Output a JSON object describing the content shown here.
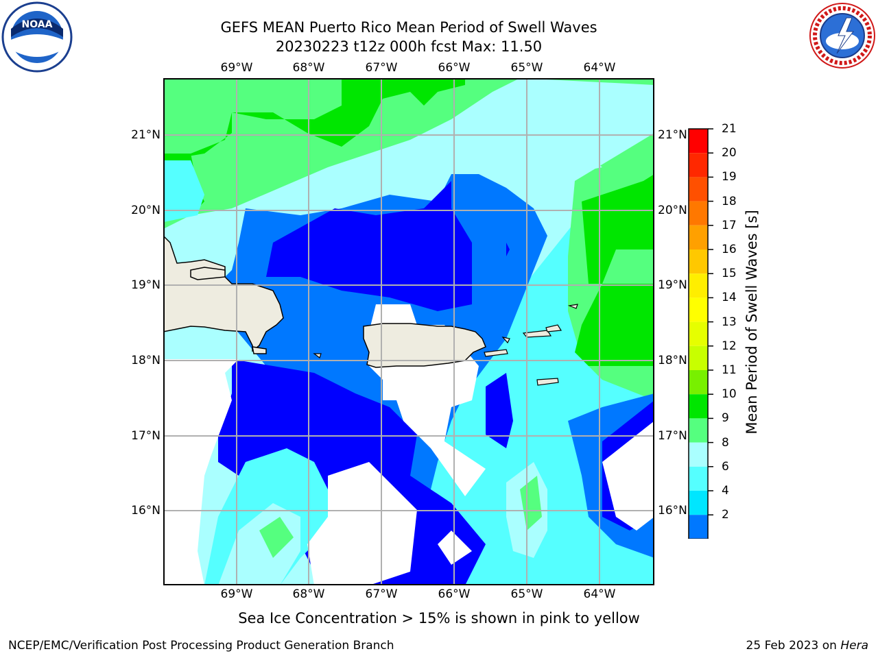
{
  "header": {
    "title_line1": "GEFS MEAN Puerto Rico Mean Period of Swell Waves",
    "title_line2": "20230223 t12z 000h fcst   Max: 11.50"
  },
  "logos": {
    "left": {
      "icon": "noaa-logo",
      "text": "NOAA"
    },
    "right": {
      "icon": "nws-logo",
      "text": "NATIONAL WEATHER SERVICE"
    }
  },
  "map": {
    "lon_labels": [
      "69°W",
      "68°W",
      "67°W",
      "66°W",
      "65°W",
      "64°W"
    ],
    "lat_labels": [
      "21°N",
      "20°N",
      "19°N",
      "18°N",
      "17°N",
      "16°N"
    ],
    "land_color": "#eeece0",
    "grid_color": "#b0b0b0"
  },
  "colorbar": {
    "label": "Mean Period of Swell Waves [s]",
    "ticks": [
      "21",
      "20",
      "19",
      "18",
      "17",
      "16",
      "15",
      "14",
      "13",
      "12",
      "11",
      "10",
      "9",
      "8",
      "6",
      "4",
      "2"
    ],
    "colors": [
      "#ff0000",
      "#ff2800",
      "#ff5000",
      "#ff7800",
      "#ffa000",
      "#ffc800",
      "#ffee00",
      "#ffff00",
      "#e6ff00",
      "#c8ff00",
      "#78f000",
      "#00e600",
      "#55ff7f",
      "#aaffff",
      "#55ffff",
      "#00e6ff",
      "#0078ff",
      "#0000ff"
    ]
  },
  "bottom_note": "Sea Ice Concentration > 15% is shown in pink to yellow",
  "footer": {
    "left": "NCEP/EMC/Verification Post Processing Product Generation Branch",
    "right_prefix": "25 Feb 2023 on ",
    "right_machine": "Hera"
  }
}
